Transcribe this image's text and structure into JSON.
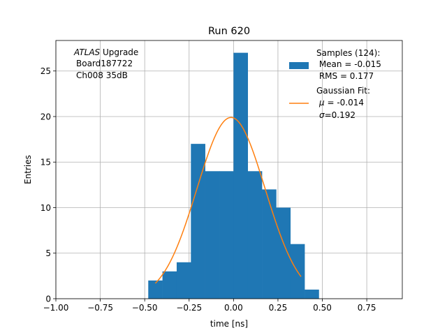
{
  "chart_data": {
    "type": "bar",
    "title": "Run 620",
    "xlabel": "time [ns]",
    "ylabel": "Entries",
    "xlim": [
      -1.0,
      0.95
    ],
    "ylim": [
      0,
      28.35
    ],
    "grid": true,
    "xticks": [
      -1.0,
      -0.75,
      -0.5,
      -0.25,
      0.0,
      0.25,
      0.5,
      0.75
    ],
    "xtick_labels": [
      "−1.00",
      "−0.75",
      "−0.50",
      "−0.25",
      "0.00",
      "0.25",
      "0.50",
      "0.75"
    ],
    "yticks": [
      0,
      5,
      10,
      15,
      20,
      25
    ],
    "yticks_labels": [
      "0",
      "5",
      "10",
      "15",
      "20",
      "25"
    ],
    "annotation": {
      "italic_part": "ATLAS",
      "line1_rest": " Upgrade",
      "line2": "Board187722",
      "line3": "Ch008 35dB"
    },
    "histogram": {
      "bin_edges": [
        -0.48,
        -0.4,
        -0.32,
        -0.24,
        -0.16,
        -0.08,
        0.0,
        0.08,
        0.16,
        0.24,
        0.32,
        0.4,
        0.48
      ],
      "counts": [
        2,
        3,
        4,
        17,
        14,
        14,
        27,
        14,
        12,
        10,
        6,
        1
      ],
      "color": "#1f77b4"
    },
    "fit": {
      "amplitude": 19.9,
      "mu": -0.014,
      "sigma": 0.192,
      "x_range": [
        -0.44,
        0.38
      ],
      "color": "#ff7f0e"
    },
    "legend": {
      "position": "upper right",
      "hist_lines": [
        "Samples (124):",
        " Mean = -0.015",
        " RMS = 0.177"
      ],
      "fit_line1": "Gaussian Fit:",
      "fit_mu_symbol": "μ",
      "fit_mu_rest": " = -0.014",
      "fit_sigma_symbol": "σ",
      "fit_sigma_rest": "=0.192"
    }
  }
}
